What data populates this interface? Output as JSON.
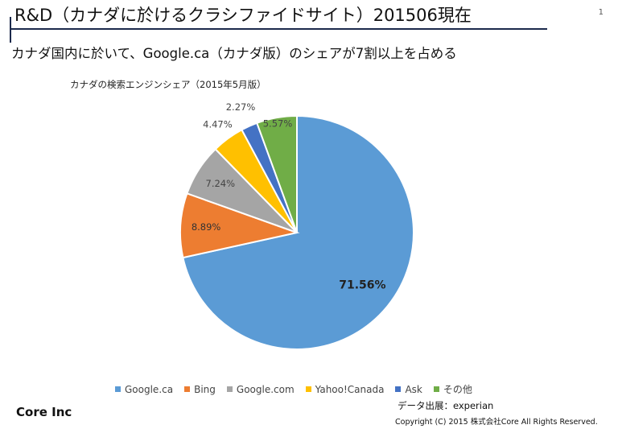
{
  "header": {
    "title": "R&D（カナダに於けるクラシファイドサイト）201506現在",
    "page_number": "1",
    "subtitle": "カナダ国内に於いて、Google.ca（カナダ版）のシェアが7割以上を占める"
  },
  "chart_data": {
    "type": "pie",
    "title": "カナダの検索エンジンシェア（2015年5月版）",
    "categories": [
      "Google.ca",
      "Bing",
      "Google.com",
      "Yahoo!Canada",
      "Ask",
      "その他"
    ],
    "values": [
      71.56,
      8.89,
      7.24,
      4.47,
      2.27,
      5.57
    ],
    "labels": [
      "71.56%",
      "8.89%",
      "7.24%",
      "4.47%",
      "2.27%",
      "5.57%"
    ],
    "colors": [
      "#5B9BD5",
      "#ED7D31",
      "#A5A5A5",
      "#FFC000",
      "#4472C4",
      "#70AD47"
    ],
    "legend_position": "bottom"
  },
  "footer": {
    "company": "Core Inc",
    "source": "データ出展：experian",
    "copyright": "Copyright (C) 2015 株式会社Core All Rights Reserved."
  }
}
